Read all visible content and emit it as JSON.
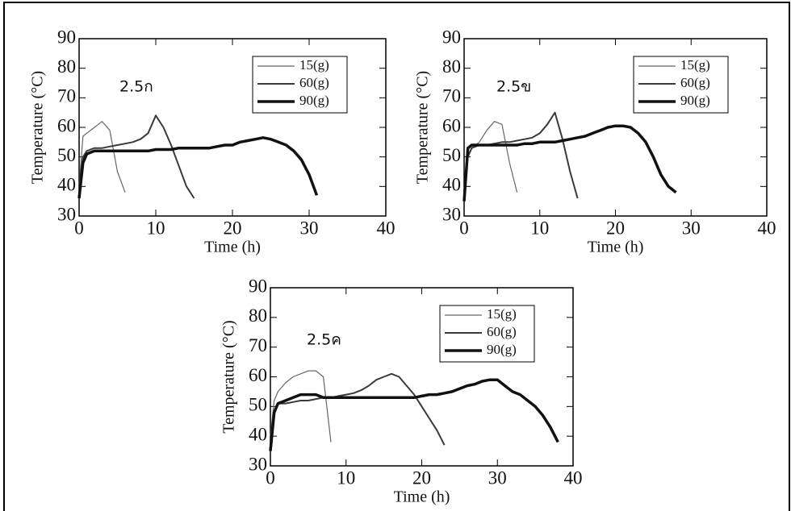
{
  "chart_data": [
    {
      "type": "line",
      "annotation": "2.5ก",
      "x_label": "Time (h)",
      "y_label": "Temperature (°C)",
      "xlim": [
        0,
        40
      ],
      "xticks": [
        0,
        10,
        20,
        30,
        40
      ],
      "ylim": [
        30,
        90
      ],
      "yticks": [
        30,
        40,
        50,
        60,
        70,
        80,
        90
      ],
      "x": [
        0,
        0.5,
        1,
        2,
        3,
        4,
        5,
        6,
        7,
        8,
        9,
        10,
        11,
        12,
        13,
        14,
        15,
        16,
        17,
        18,
        19,
        20,
        21,
        22,
        23,
        24,
        25,
        26,
        27,
        28,
        29,
        30,
        31
      ],
      "series": [
        {
          "name": "15(g)",
          "color": "#666666",
          "line_width": 1.2,
          "values": [
            40,
            57,
            58,
            60,
            62,
            59,
            45,
            38,
            null,
            null,
            null,
            null,
            null,
            null,
            null,
            null,
            null,
            null,
            null,
            null,
            null,
            null,
            null,
            null,
            null,
            null,
            null,
            null,
            null,
            null,
            null,
            null,
            null
          ]
        },
        {
          "name": "60(g)",
          "color": "#3a3a3a",
          "line_width": 2,
          "values": [
            40,
            50,
            52,
            53,
            53,
            53.5,
            54,
            54.5,
            55,
            56,
            58,
            64,
            60,
            54,
            47,
            40,
            36,
            null,
            null,
            null,
            null,
            null,
            null,
            null,
            null,
            null,
            null,
            null,
            null,
            null,
            null,
            null,
            null
          ]
        },
        {
          "name": "90(g)",
          "color": "#111111",
          "line_width": 3.5,
          "values": [
            36,
            48,
            51,
            52,
            52,
            52,
            52,
            52,
            52,
            52,
            52,
            52.5,
            52.5,
            52.5,
            53,
            53,
            53,
            53,
            53,
            53.5,
            54,
            54,
            55,
            55.5,
            56,
            56.5,
            56,
            55,
            54,
            52,
            49,
            44,
            37
          ]
        }
      ]
    },
    {
      "type": "line",
      "annotation": "2.5ข",
      "x_label": "Time (h)",
      "y_label": "Temperature (°C)",
      "xlim": [
        0,
        40
      ],
      "xticks": [
        0,
        10,
        20,
        30,
        40
      ],
      "ylim": [
        30,
        90
      ],
      "yticks": [
        30,
        40,
        50,
        60,
        70,
        80,
        90
      ],
      "x": [
        0,
        0.5,
        1,
        2,
        3,
        4,
        5,
        6,
        7,
        8,
        9,
        10,
        11,
        12,
        13,
        14,
        15,
        16,
        17,
        18,
        19,
        20,
        21,
        22,
        23,
        24,
        25,
        26,
        27,
        28
      ],
      "series": [
        {
          "name": "15(g)",
          "color": "#666666",
          "line_width": 1.2,
          "values": [
            38,
            50,
            53,
            55,
            59,
            62,
            61,
            48,
            38,
            null,
            null,
            null,
            null,
            null,
            null,
            null,
            null,
            null,
            null,
            null,
            null,
            null,
            null,
            null,
            null,
            null,
            null,
            null,
            null,
            null
          ]
        },
        {
          "name": "60(g)",
          "color": "#3a3a3a",
          "line_width": 2,
          "values": [
            38,
            50,
            53,
            54,
            54,
            54.5,
            55,
            55,
            55.5,
            56,
            56.5,
            58,
            61,
            65,
            56,
            45,
            36,
            null,
            null,
            null,
            null,
            null,
            null,
            null,
            null,
            null,
            null,
            null,
            null,
            null
          ]
        },
        {
          "name": "90(g)",
          "color": "#111111",
          "line_width": 3.5,
          "values": [
            35,
            53,
            54,
            54,
            54,
            54,
            54,
            54,
            54,
            54.5,
            54.5,
            55,
            55,
            55,
            55.5,
            56,
            56.5,
            57,
            58,
            59,
            60,
            60.5,
            60.5,
            60,
            58,
            55,
            50,
            44,
            40,
            38
          ]
        }
      ]
    },
    {
      "type": "line",
      "annotation": "2.5ค",
      "x_label": "Time (h)",
      "y_label": "Temperature (°C)",
      "xlim": [
        0,
        40
      ],
      "xticks": [
        0,
        10,
        20,
        30,
        40
      ],
      "ylim": [
        30,
        90
      ],
      "yticks": [
        30,
        40,
        50,
        60,
        70,
        80,
        90
      ],
      "x": [
        0,
        0.5,
        1,
        2,
        3,
        4,
        5,
        6,
        7,
        8,
        9,
        10,
        11,
        12,
        13,
        14,
        15,
        16,
        17,
        18,
        19,
        20,
        21,
        22,
        23,
        24,
        25,
        26,
        27,
        28,
        29,
        30,
        31,
        32,
        33,
        34,
        35,
        36,
        37,
        38
      ],
      "series": [
        {
          "name": "15(g)",
          "color": "#666666",
          "line_width": 1.2,
          "values": [
            40,
            52,
            55,
            58,
            60,
            61,
            62,
            62,
            60,
            38,
            null,
            null,
            null,
            null,
            null,
            null,
            null,
            null,
            null,
            null,
            null,
            null,
            null,
            null,
            null,
            null,
            null,
            null,
            null,
            null,
            null,
            null,
            null,
            null,
            null,
            null,
            null,
            null,
            null,
            null
          ]
        },
        {
          "name": "60(g)",
          "color": "#3a3a3a",
          "line_width": 2,
          "values": [
            38,
            48,
            51,
            51,
            51.5,
            52,
            52,
            52.5,
            53,
            53,
            53.5,
            54,
            54.5,
            55.5,
            57,
            59,
            60,
            61,
            60,
            57,
            54,
            50,
            46,
            42,
            37,
            null,
            null,
            null,
            null,
            null,
            null,
            null,
            null,
            null,
            null,
            null,
            null,
            null,
            null,
            null
          ]
        },
        {
          "name": "90(g)",
          "color": "#111111",
          "line_width": 3.5,
          "values": [
            35,
            48,
            51,
            52,
            53,
            54,
            54,
            54,
            53,
            53,
            53,
            53,
            53,
            53,
            53,
            53,
            53,
            53,
            53,
            53,
            53,
            53.5,
            54,
            54,
            54.5,
            55,
            56,
            57,
            57.5,
            58.5,
            59,
            59,
            57,
            55,
            54,
            52,
            50,
            47,
            43,
            38
          ]
        }
      ]
    }
  ]
}
